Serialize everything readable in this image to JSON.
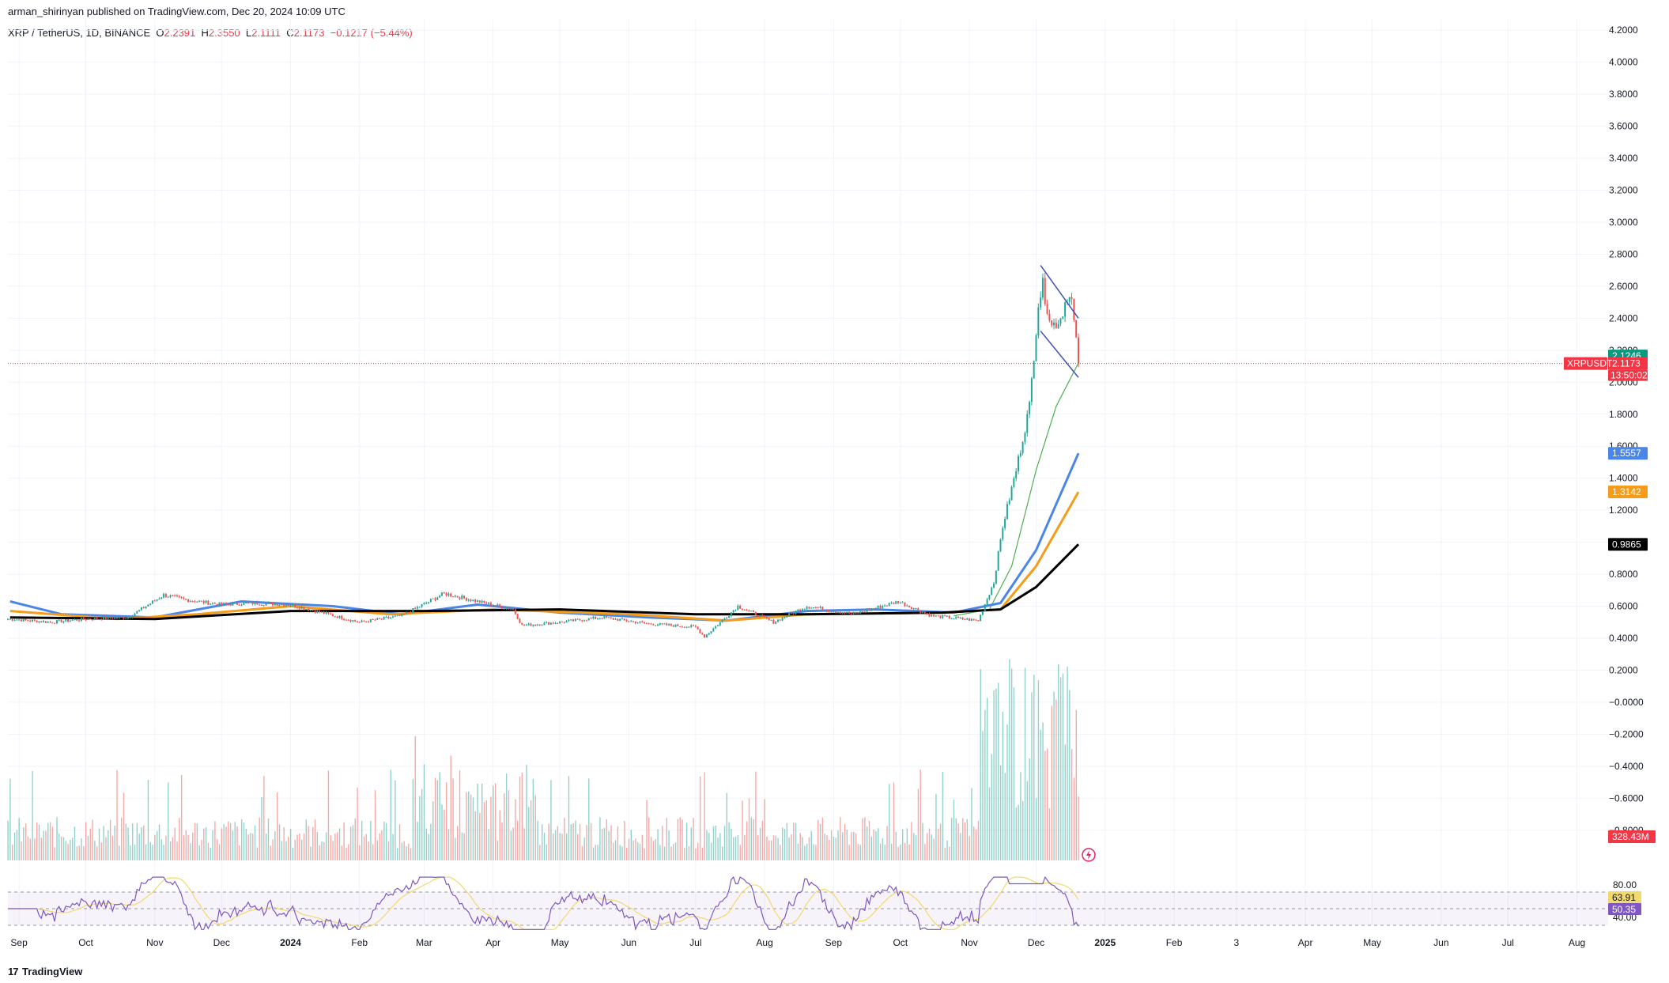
{
  "header": {
    "published": "arman_shirinyan published on TradingView.com, Dec 20, 2024 10:09 UTC",
    "symbol": "XRP / TetherUS, 1D, BINANCE",
    "open_label": "O",
    "open_value": "2.2391",
    "high_label": "H",
    "high_value": "2.3550",
    "low_label": "L",
    "low_value": "2.1111",
    "close_label": "C",
    "close_value": "2.1173",
    "change": "−0.1217 (−5.44%)"
  },
  "footer": {
    "logo_text": "TradingView",
    "logo_mark": "17"
  },
  "colors": {
    "up": "#26a69a",
    "down": "#ef5350",
    "ma_fast": "#4caf50",
    "ma_blue": "#4a86e8",
    "ma_orange": "#f59c1a",
    "ma_black": "#000000",
    "rsi": "#7e57c2",
    "rsi_ma": "#f2d96b",
    "grid": "#f0f3fa",
    "price_line": "#f23645",
    "wedge": "#3f51b5"
  },
  "chart_data": {
    "type": "candlestick",
    "price_axis_ticks": [
      "4.2000",
      "4.0000",
      "3.8000",
      "3.6000",
      "3.4000",
      "3.2000",
      "3.0000",
      "2.8000",
      "2.6000",
      "2.4000",
      "2.2000",
      "2.0000",
      "1.8000",
      "1.6000",
      "1.4000",
      "1.2000",
      "1.0000",
      "0.8000",
      "0.6000",
      "0.4000",
      "0.2000",
      "−0.0000",
      "−0.2000",
      "−0.4000",
      "−0.6000",
      "−0.8000"
    ],
    "price_axis_values": [
      4.2,
      4.0,
      3.8,
      3.6,
      3.4,
      3.2,
      3.0,
      2.8,
      2.6,
      2.4,
      2.2,
      2.0,
      1.8,
      1.6,
      1.4,
      1.2,
      1.0,
      0.8,
      0.6,
      0.4,
      0.2,
      0.0,
      -0.2,
      -0.4,
      -0.6,
      -0.8
    ],
    "x_axis_labels": [
      "Sep",
      "Oct",
      "Nov",
      "Dec",
      "2024",
      "Feb",
      "Mar",
      "Apr",
      "May",
      "Jun",
      "Jul",
      "Aug",
      "Sep",
      "Oct",
      "Nov",
      "Dec",
      "2025",
      "Feb",
      "3",
      "Apr",
      "May",
      "Jun",
      "Jul",
      "Aug"
    ],
    "x_axis_bold": [
      "2024",
      "2025"
    ],
    "last_price": 2.1173,
    "price_tags": [
      {
        "label": "2.1246",
        "value": 2.1246,
        "color": "#089981"
      },
      {
        "label": "2.1173",
        "value": 2.1173,
        "color": "#f23645"
      },
      {
        "label": "1.5557",
        "value": 1.5557,
        "color": "#4a86e8"
      },
      {
        "label": "1.3142",
        "value": 1.3142,
        "color": "#f59c1a"
      },
      {
        "label": "0.9865",
        "value": 0.9865,
        "color": "#000000"
      }
    ],
    "symbol_tag": "XRPUSDT",
    "countdown": "13:50:02",
    "volume_tag": "328.43M",
    "rsi_axis_ticks": [
      "80.00",
      "40.00"
    ],
    "rsi_tags": [
      {
        "label": "63.91",
        "color": "#f2d96b"
      },
      {
        "label": "50.35",
        "color": "#7e57c2"
      }
    ],
    "rsi_levels": [
      70,
      50,
      30
    ],
    "price_waypoints": [
      [
        "Aug 28, 2023",
        0.52
      ],
      [
        "Sep 15, 2023",
        0.5
      ],
      [
        "Oct 1, 2023",
        0.52
      ],
      [
        "Oct 20, 2023",
        0.53
      ],
      [
        "Nov 5, 2023",
        0.67
      ],
      [
        "Nov 15, 2023",
        0.64
      ],
      [
        "Dec 1, 2023",
        0.61
      ],
      [
        "Dec 15, 2023",
        0.62
      ],
      [
        "Jan 1, 2024",
        0.61
      ],
      [
        "Jan 15, 2024",
        0.56
      ],
      [
        "Feb 1, 2024",
        0.5
      ],
      [
        "Feb 20, 2024",
        0.54
      ],
      [
        "Mar 10, 2024",
        0.68
      ],
      [
        "Mar 25, 2024",
        0.63
      ],
      [
        "Apr 10, 2024",
        0.58
      ],
      [
        "Apr 14, 2024",
        0.48
      ],
      [
        "May 1, 2024",
        0.5
      ],
      [
        "May 20, 2024",
        0.53
      ],
      [
        "Jun 10, 2024",
        0.49
      ],
      [
        "Jul 1, 2024",
        0.47
      ],
      [
        "Jul 5, 2024",
        0.41
      ],
      [
        "Jul 20, 2024",
        0.6
      ],
      [
        "Aug 5, 2024",
        0.5
      ],
      [
        "Aug 20, 2024",
        0.6
      ],
      [
        "Sep 10, 2024",
        0.55
      ],
      [
        "Sep 30, 2024",
        0.63
      ],
      [
        "Oct 15, 2024",
        0.54
      ],
      [
        "Nov 5, 2024",
        0.51
      ],
      [
        "Nov 12, 2024",
        0.75
      ],
      [
        "Nov 16, 2024",
        1.1
      ],
      [
        "Nov 22, 2024",
        1.45
      ],
      [
        "Nov 28, 2024",
        1.85
      ],
      [
        "Dec 2, 2024",
        2.5
      ],
      [
        "Dec 4, 2024",
        2.6
      ],
      [
        "Dec 8, 2024",
        2.35
      ],
      [
        "Dec 12, 2024",
        2.4
      ],
      [
        "Dec 15, 2024",
        2.55
      ],
      [
        "Dec 17, 2024",
        2.5
      ],
      [
        "Dec 19, 2024",
        2.24
      ],
      [
        "Dec 20, 2024",
        2.1173
      ]
    ],
    "moving_averages": [
      {
        "name": "",
        "color": "#4caf50",
        "waypoints": [
          [
            "Oct 25, 2024",
            0.54
          ],
          [
            "Nov 10, 2024",
            0.58
          ],
          [
            "Nov 20, 2024",
            0.85
          ],
          [
            "Dec 1, 2024",
            1.45
          ],
          [
            "Dec 10, 2024",
            1.85
          ],
          [
            "Dec 20, 2024",
            2.12
          ]
        ]
      },
      {
        "name": "",
        "color": "#4a86e8",
        "waypoints": [
          [
            "Aug 28, 2023",
            0.63
          ],
          [
            "Sep 20, 2023",
            0.55
          ],
          [
            "Nov 1, 2023",
            0.53
          ],
          [
            "Dec 10, 2023",
            0.63
          ],
          [
            "Jan 20, 2024",
            0.6
          ],
          [
            "Feb 20, 2024",
            0.55
          ],
          [
            "Mar 25, 2024",
            0.61
          ],
          [
            "May 1, 2024",
            0.56
          ],
          [
            "Jun 10, 2024",
            0.53
          ],
          [
            "Jul 15, 2024",
            0.51
          ],
          [
            "Aug 20, 2024",
            0.57
          ],
          [
            "Sep 20, 2024",
            0.58
          ],
          [
            "Oct 25, 2024",
            0.56
          ],
          [
            "Nov 15, 2024",
            0.62
          ],
          [
            "Dec 1, 2024",
            0.95
          ],
          [
            "Dec 20, 2024",
            1.5557
          ]
        ]
      },
      {
        "name": "",
        "color": "#f59c1a",
        "waypoints": [
          [
            "Aug 28, 2023",
            0.57
          ],
          [
            "Oct 15, 2023",
            0.52
          ],
          [
            "Nov 20, 2023",
            0.55
          ],
          [
            "Jan 1, 2024",
            0.6
          ],
          [
            "Feb 15, 2024",
            0.55
          ],
          [
            "Apr 1, 2024",
            0.58
          ],
          [
            "Jun 1, 2024",
            0.55
          ],
          [
            "Jul 15, 2024",
            0.51
          ],
          [
            "Aug 20, 2024",
            0.55
          ],
          [
            "Oct 20, 2024",
            0.56
          ],
          [
            "Nov 15, 2024",
            0.58
          ],
          [
            "Dec 1, 2024",
            0.85
          ],
          [
            "Dec 20, 2024",
            1.3142
          ]
        ]
      },
      {
        "name": "",
        "color": "#000000",
        "waypoints": [
          [
            "Aug 28, 2023",
            0.53
          ],
          [
            "Nov 1, 2023",
            0.52
          ],
          [
            "Jan 1, 2024",
            0.57
          ],
          [
            "Mar 1, 2024",
            0.57
          ],
          [
            "May 1, 2024",
            0.58
          ],
          [
            "Jul 1, 2024",
            0.55
          ],
          [
            "Aug 20, 2024",
            0.55
          ],
          [
            "Oct 20, 2024",
            0.56
          ],
          [
            "Nov 15, 2024",
            0.58
          ],
          [
            "Dec 1, 2024",
            0.72
          ],
          [
            "Dec 20, 2024",
            0.9865
          ]
        ]
      }
    ],
    "wedge_lines": [
      [
        [
          "Dec 3, 2024",
          2.73
        ],
        [
          "Dec 20, 2024",
          2.4
        ]
      ],
      [
        [
          "Dec 3, 2024",
          2.32
        ],
        [
          "Dec 20, 2024",
          2.03
        ]
      ]
    ]
  }
}
